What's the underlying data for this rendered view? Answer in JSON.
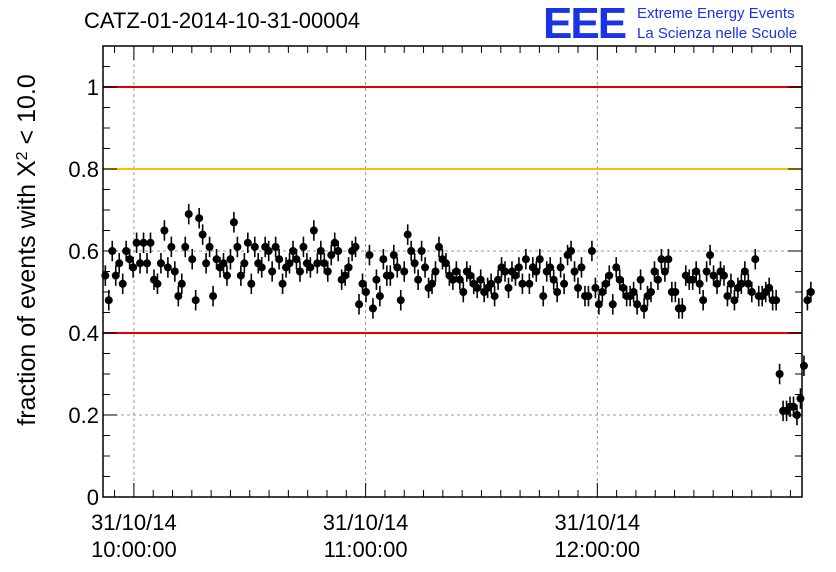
{
  "title": "CATZ-01-2014-10-31-00004",
  "logo": {
    "mark": "EEE",
    "line1": "Extreme Energy Events",
    "line2": "La Scienza nelle Scuole"
  },
  "colors": {
    "red_line": "#e00000",
    "orange_line": "#ffbb00",
    "points": "#000000",
    "logo": "#1a33e6"
  },
  "chart_data": {
    "type": "scatter",
    "ylabel_main": "fraction of events with X",
    "ylabel_sup": "2",
    "ylabel_tail": " < 10.0",
    "ylim": [
      0,
      1.1
    ],
    "yticks": [
      {
        "value": 0,
        "label": "0"
      },
      {
        "value": 0.2,
        "label": "0.2"
      },
      {
        "value": 0.4,
        "label": "0.4"
      },
      {
        "value": 0.6,
        "label": "0.6"
      },
      {
        "value": 0.8,
        "label": "0.8"
      },
      {
        "value": 1,
        "label": "1"
      }
    ],
    "xlim_minutes": [
      -8,
      173
    ],
    "xticks": [
      {
        "value": 0,
        "date": "31/10/14",
        "time": "10:00:00"
      },
      {
        "value": 60,
        "date": "31/10/14",
        "time": "11:00:00"
      },
      {
        "value": 120,
        "date": "31/10/14",
        "time": "12:00:00"
      }
    ],
    "grid": true,
    "reference_lines": [
      {
        "y": 1.0,
        "color": "red"
      },
      {
        "y": 0.8,
        "color": "orange"
      },
      {
        "y": 0.4,
        "color": "red"
      }
    ],
    "error": 0.025,
    "x_start": -7.4,
    "x_step": 0.9,
    "y": [
      0.54,
      0.48,
      0.6,
      0.54,
      0.57,
      0.52,
      0.6,
      0.58,
      0.56,
      0.62,
      0.57,
      0.62,
      0.57,
      0.62,
      0.53,
      0.52,
      0.57,
      0.65,
      0.56,
      0.61,
      0.55,
      0.49,
      0.52,
      0.61,
      0.69,
      0.58,
      0.48,
      0.68,
      0.64,
      0.57,
      0.61,
      0.49,
      0.58,
      0.56,
      0.57,
      0.54,
      0.58,
      0.67,
      0.61,
      0.54,
      0.57,
      0.62,
      0.52,
      0.61,
      0.57,
      0.56,
      0.61,
      0.6,
      0.55,
      0.61,
      0.58,
      0.52,
      0.56,
      0.57,
      0.6,
      0.58,
      0.55,
      0.61,
      0.57,
      0.56,
      0.65,
      0.57,
      0.6,
      0.57,
      0.55,
      0.59,
      0.62,
      0.6,
      0.53,
      0.54,
      0.56,
      0.6,
      0.61,
      0.47,
      0.52,
      0.5,
      0.59,
      0.46,
      0.53,
      0.49,
      0.58,
      0.54,
      0.54,
      0.59,
      0.56,
      0.48,
      0.55,
      0.64,
      0.6,
      0.57,
      0.53,
      0.6,
      0.56,
      0.51,
      0.52,
      0.55,
      0.61,
      0.58,
      0.57,
      0.54,
      0.53,
      0.55,
      0.53,
      0.5,
      0.55,
      0.54,
      0.52,
      0.51,
      0.53,
      0.5,
      0.51,
      0.52,
      0.49,
      0.53,
      0.56,
      0.55,
      0.51,
      0.55,
      0.54,
      0.56,
      0.52,
      0.58,
      0.52,
      0.56,
      0.55,
      0.58,
      0.49,
      0.55,
      0.56,
      0.53,
      0.5,
      0.56,
      0.52,
      0.59,
      0.6,
      0.55,
      0.51,
      0.56,
      0.49,
      0.49,
      0.6,
      0.51,
      0.47,
      0.5,
      0.52,
      0.54,
      0.47,
      0.56,
      0.53,
      0.51,
      0.49,
      0.49,
      0.5,
      0.47,
      0.53,
      0.46,
      0.49,
      0.5,
      0.55,
      0.53,
      0.58,
      0.55,
      0.58,
      0.5,
      0.5,
      0.46,
      0.46,
      0.54,
      0.53,
      0.53,
      0.55,
      0.52,
      0.48,
      0.55,
      0.59,
      0.54,
      0.52,
      0.55,
      0.54,
      0.49,
      0.52,
      0.48,
      0.51,
      0.52,
      0.55,
      0.52,
      0.5,
      0.58,
      0.49,
      0.49,
      0.5,
      0.51,
      0.48,
      0.48,
      0.3,
      0.21,
      0.21,
      0.22,
      0.22,
      0.2,
      0.24,
      0.32,
      0.48,
      0.5
    ]
  }
}
